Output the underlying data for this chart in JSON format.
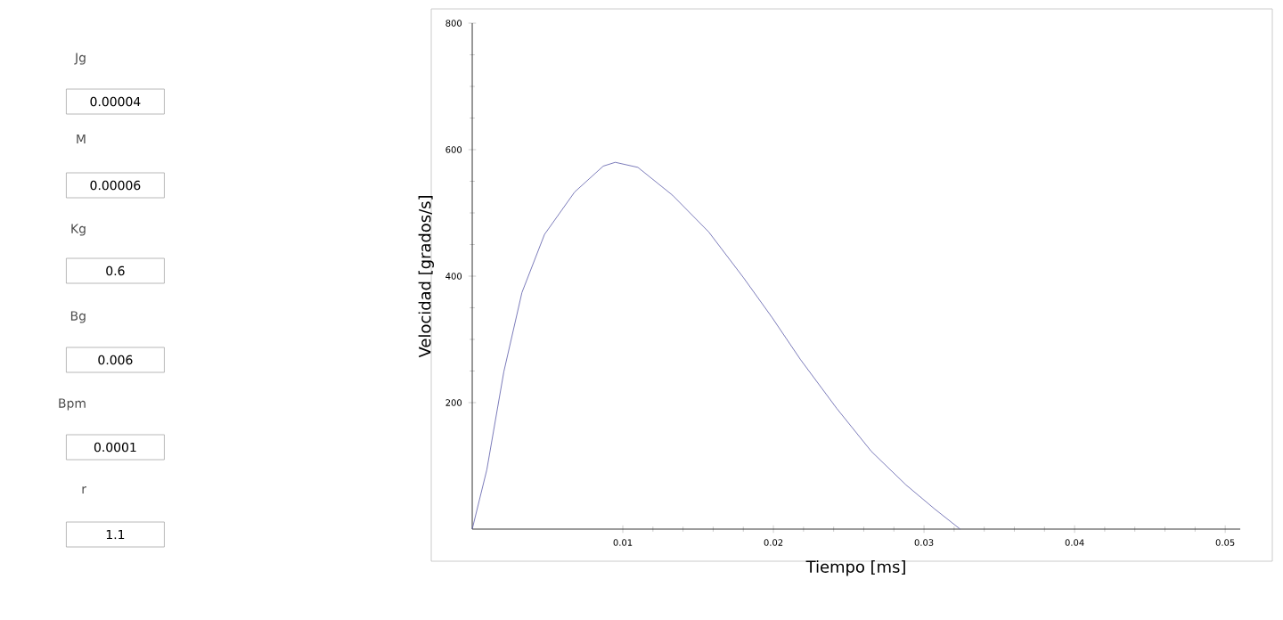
{
  "chart_data": {
    "type": "line",
    "xlabel": "Tiempo [ms]",
    "ylabel": "Velocidad [grados/s]",
    "x": [
      0,
      0.00097,
      0.0021,
      0.0033,
      0.0048,
      0.0068,
      0.0087,
      0.0095,
      0.011,
      0.0133,
      0.0157,
      0.018,
      0.0199,
      0.0218,
      0.0242,
      0.0265,
      0.0288,
      0.0307,
      0.0324
    ],
    "series": [
      {
        "color": "#5a5aa8",
        "values": [
          0,
          94,
          249,
          374,
          466,
          533,
          574,
          580,
          572,
          528,
          470,
          398,
          335,
          268,
          191,
          123,
          70,
          32,
          0
        ]
      }
    ],
    "xlim": [
      0,
      0.051
    ],
    "ylim": [
      0,
      800
    ],
    "xticks": [
      0.01,
      0.02,
      0.03,
      0.04,
      0.05
    ],
    "yticks": [
      200,
      400,
      600,
      800
    ],
    "marker": "none",
    "line_style": "solid",
    "grid": false,
    "annotations": [
      "Jg",
      "0.00004",
      "M",
      "0.00006",
      "Kg",
      "0.6",
      "Bg",
      "0.006",
      "Bpm",
      "0.0001",
      "r",
      "1.1"
    ]
  }
}
